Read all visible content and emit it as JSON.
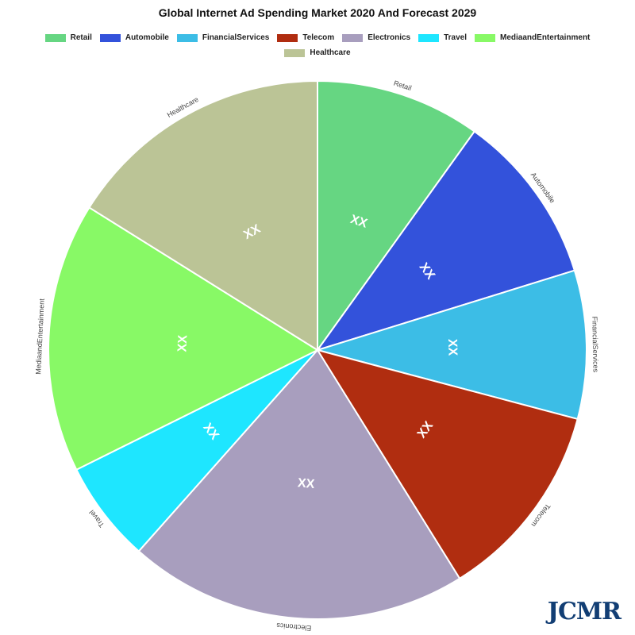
{
  "chart_data": {
    "type": "pie",
    "title": "Global Internet Ad Spending Market 2020 And Forecast 2029",
    "categories": [
      "Retail",
      "Automobile",
      "FinancialServices",
      "Telecom",
      "Electronics",
      "Travel",
      "MediaandEntertainment",
      "Healthcare"
    ],
    "values": [
      9.9,
      10.3,
      8.9,
      12.0,
      20.4,
      6.1,
      16.2,
      16.1
    ],
    "colors": [
      "#66d682",
      "#3352db",
      "#3cbde6",
      "#b02d10",
      "#a89ebe",
      "#1ee6ff",
      "#88f966",
      "#bbc496"
    ],
    "data_labels": [
      "XX",
      "XX",
      "XX",
      "XX",
      "XX",
      "XX",
      "XX",
      "XX"
    ],
    "legend_position": "top"
  },
  "logo": "JCMR"
}
